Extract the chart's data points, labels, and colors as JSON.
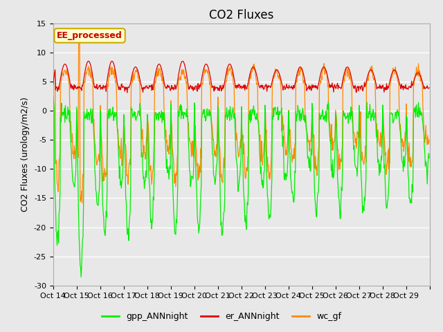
{
  "title": "CO2 Fluxes",
  "ylabel": "CO2 Fluxes (urology/m2/s)",
  "ylim": [
    -30,
    15
  ],
  "yticks": [
    -30,
    -25,
    -20,
    -15,
    -10,
    -5,
    0,
    5,
    10,
    15
  ],
  "xtick_labels": [
    "Oct 14",
    "Oct 15",
    "Oct 16",
    "Oct 17",
    "Oct 18",
    "Oct 19",
    "Oct 20",
    "Oct 21",
    "Oct 22",
    "Oct 23",
    "Oct 24",
    "Oct 25",
    "Oct 26",
    "Oct 27",
    "Oct 28",
    "Oct 29"
  ],
  "colors": {
    "gpp": "#00ee00",
    "er": "#dd0000",
    "wc": "#ff8800"
  },
  "legend_labels": [
    "gpp_ANNnight",
    "er_ANNnight",
    "wc_gf"
  ],
  "annotation_text": "EE_processed",
  "annotation_color": "#cc0000",
  "annotation_bg": "#ffffcc",
  "annotation_edge": "#ccaa00",
  "bg_color": "#e8e8e8",
  "grid_color": "#ffffff",
  "title_fontsize": 12,
  "label_fontsize": 9,
  "tick_fontsize": 8,
  "n_days": 16,
  "pts_per_day": 48,
  "gpp_night_min": [
    -22,
    -27,
    -21,
    -21,
    -19,
    -21,
    -20,
    -21,
    -20,
    -19,
    -16,
    -17,
    -17,
    -17,
    -16,
    -16
  ],
  "er_day_peak": [
    8.0,
    8.5,
    8.5,
    7.5,
    8.0,
    8.5,
    8.0,
    8.0,
    7.5,
    7.0,
    7.5,
    7.5,
    7.5,
    7.0,
    7.0,
    6.5
  ],
  "wc_spike_day": 1,
  "wc_spike_val": 12.0
}
